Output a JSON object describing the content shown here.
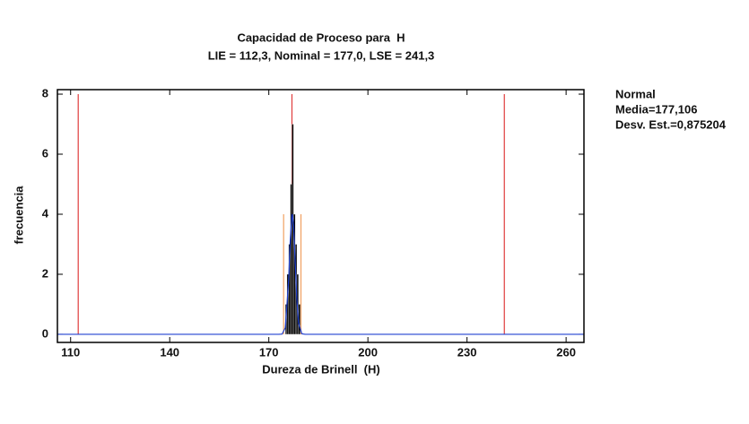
{
  "chart_data": {
    "type": "histogram",
    "title": "Capacidad de Proceso para  H",
    "subtitle": "LIE = 112,3, Nominal = 177,0, LSE = 241,3",
    "x_label": "Dureza de Brinell  (H)",
    "y_label": "frecuencia",
    "xlim": [
      106,
      265.4
    ],
    "ylim": [
      -0.27,
      8.15
    ],
    "xticks": [
      110,
      140,
      170,
      200,
      230,
      260
    ],
    "yticks": [
      0,
      2,
      4,
      6,
      8
    ],
    "bins": [
      175.0,
      175.5,
      176.0,
      176.5,
      177.0,
      177.5,
      178.0,
      178.5,
      179.0,
      179.5
    ],
    "values": [
      1,
      2,
      3,
      5,
      7,
      4,
      3,
      2,
      1
    ],
    "color": "#000000",
    "curve": {
      "color": "#2040d0",
      "x": [
        106,
        173,
        174,
        175,
        176,
        176.5,
        177,
        177.106,
        177.5,
        178,
        178.5,
        179,
        180,
        181,
        265.4
      ],
      "values": [
        0,
        0,
        0.007,
        0.22,
        1.8,
        3.15,
        3.97,
        4,
        3.62,
        2.37,
        1.13,
        0.38,
        0.017,
        0,
        0
      ]
    },
    "spec_lines": {
      "values": [
        112.3,
        177.0,
        241.3
      ],
      "height": 8,
      "color": "#e03c3c"
    },
    "sigma_lines": {
      "values": [
        174.48,
        179.73
      ],
      "height": 4,
      "color": "#f0a060"
    },
    "legend": [
      "Normal",
      "Media=177,106",
      "Desv. Est.=0,875204"
    ]
  }
}
